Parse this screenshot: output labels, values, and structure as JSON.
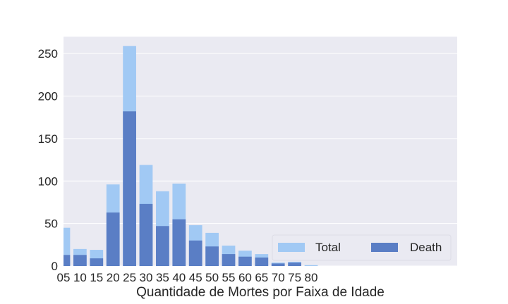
{
  "chart_data": {
    "type": "bar",
    "title": "",
    "xlabel": "Quantidade de Mortes por Faixa de Idade",
    "ylabel": "",
    "categories": [
      "05",
      "10",
      "15",
      "20",
      "25",
      "30",
      "35",
      "40",
      "45",
      "50",
      "55",
      "60",
      "65",
      "70",
      "75",
      "80"
    ],
    "series": [
      {
        "name": "Total",
        "color": "#a1c9f4",
        "values": [
          45,
          20,
          19,
          96,
          259,
          119,
          88,
          97,
          48,
          39,
          24,
          18,
          14,
          4,
          5,
          1
        ]
      },
      {
        "name": "Death",
        "color": "#5a7ec5",
        "values": [
          13,
          13,
          9,
          63,
          182,
          73,
          47,
          55,
          30,
          23,
          14,
          11,
          10,
          3,
          4,
          0
        ]
      }
    ],
    "ylim": [
      0,
      270
    ],
    "yticks": [
      0,
      50,
      100,
      150,
      200,
      250
    ],
    "grid": true,
    "legend_position": "lower-right",
    "style": {
      "plot_background": "#eaeaf2",
      "grid_color": "#ffffff",
      "text_color": "#262626"
    }
  }
}
